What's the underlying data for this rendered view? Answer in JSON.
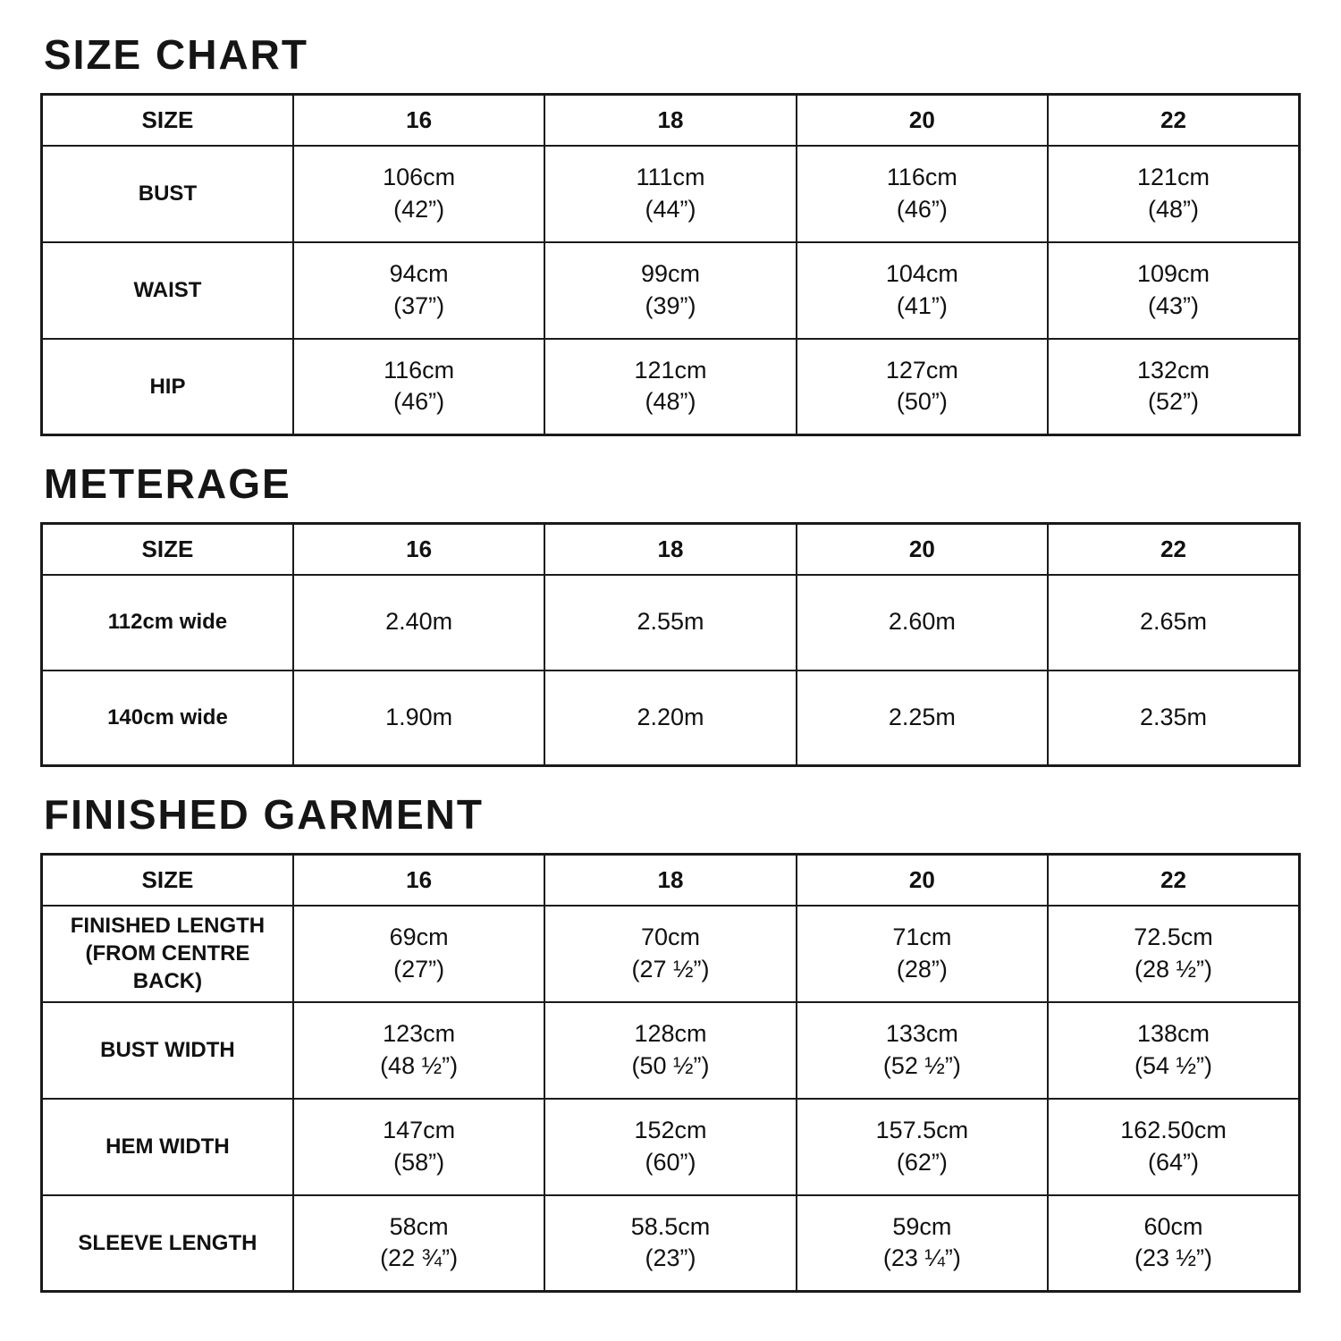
{
  "page": {
    "background_color": "#ffffff",
    "text_color": "#111111",
    "border_color": "#1a1a1a"
  },
  "sections": [
    {
      "title": "SIZE CHART",
      "header": [
        "SIZE",
        "16",
        "18",
        "20",
        "22"
      ],
      "rows": [
        {
          "label": "BUST",
          "cells": [
            "106cm\n(42”)",
            "111cm\n(44”)",
            "116cm\n(46”)",
            "121cm\n(48”)"
          ]
        },
        {
          "label": "WAIST",
          "cells": [
            "94cm\n(37”)",
            "99cm\n(39”)",
            "104cm\n(41”)",
            "109cm\n(43”)"
          ]
        },
        {
          "label": "HIP",
          "cells": [
            "116cm\n(46”)",
            "121cm\n(48”)",
            "127cm\n(50”)",
            "132cm\n(52”)"
          ]
        }
      ]
    },
    {
      "title": "METERAGE",
      "header": [
        "SIZE",
        "16",
        "18",
        "20",
        "22"
      ],
      "rows": [
        {
          "label": "112cm wide",
          "cells": [
            "2.40m",
            "2.55m",
            "2.60m",
            "2.65m"
          ]
        },
        {
          "label": "140cm wide",
          "cells": [
            "1.90m",
            "2.20m",
            "2.25m",
            "2.35m"
          ]
        }
      ]
    },
    {
      "title": "FINISHED GARMENT",
      "header": [
        "SIZE",
        "16",
        "18",
        "20",
        "22"
      ],
      "rows": [
        {
          "label": "FINISHED LENGTH\n(FROM CENTRE BACK)",
          "cells": [
            "69cm\n(27”)",
            "70cm\n(27 ½”)",
            "71cm\n(28”)",
            "72.5cm\n(28 ½”)"
          ]
        },
        {
          "label": "BUST WIDTH",
          "cells": [
            "123cm\n(48 ½”)",
            "128cm\n(50 ½”)",
            "133cm\n(52 ½”)",
            "138cm\n(54 ½”)"
          ]
        },
        {
          "label": "HEM WIDTH",
          "cells": [
            "147cm\n(58”)",
            "152cm\n(60”)",
            "157.5cm\n(62”)",
            "162.50cm\n(64”)"
          ]
        },
        {
          "label": "SLEEVE LENGTH",
          "cells": [
            "58cm\n(22 ¾”)",
            "58.5cm\n(23”)",
            "59cm\n(23 ¼”)",
            "60cm\n(23 ½”)"
          ]
        }
      ]
    }
  ]
}
